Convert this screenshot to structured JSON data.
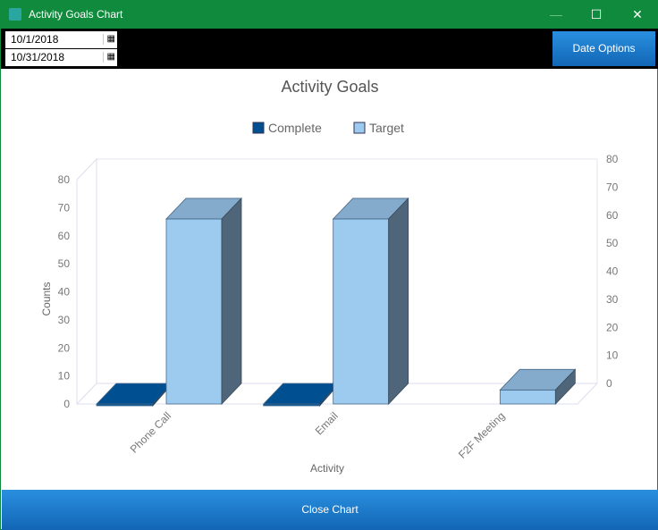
{
  "window": {
    "title": "Activity Goals Chart",
    "minimize": "—",
    "maximize": "☐",
    "close": "✕"
  },
  "toolbar": {
    "start_date": "10/1/2018",
    "end_date": "10/31/2018",
    "date_options_label": "Date Options",
    "calendar_icon": "▦"
  },
  "footer": {
    "close_label": "Close Chart"
  },
  "colors": {
    "complete": "#004f91",
    "target": "#9ccbef",
    "titlebar": "#108a3c"
  },
  "chart_data": {
    "type": "bar",
    "title": "Activity Goals",
    "xlabel": "Activity",
    "ylabel": "Counts",
    "categories": [
      "Phone Call",
      "Email",
      "F2F Meeting"
    ],
    "series": [
      {
        "name": "Complete",
        "values": [
          0,
          0,
          null
        ]
      },
      {
        "name": "Target",
        "values": [
          66,
          66,
          5
        ]
      }
    ],
    "ylim": [
      0,
      80
    ],
    "yticks": [
      "0",
      "10",
      "20",
      "30",
      "40",
      "50",
      "60",
      "70",
      "80"
    ],
    "legend": "top-center",
    "three_d": true
  }
}
